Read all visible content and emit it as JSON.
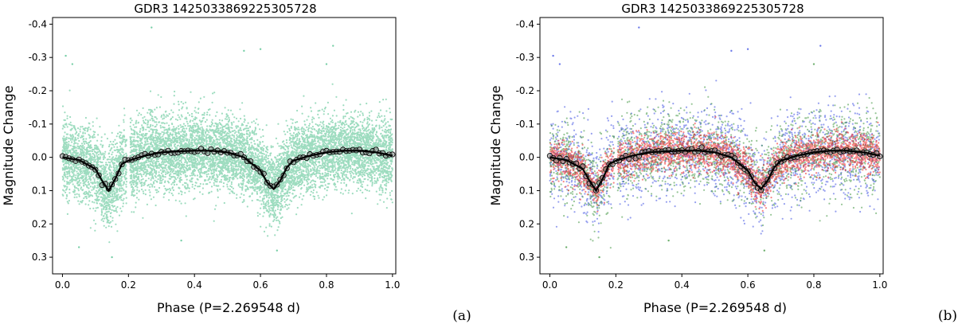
{
  "chart_data": [
    {
      "type": "scatter",
      "panel_label": "(a)",
      "title": "GDR3 1425033869225305728",
      "xlabel": "Phase (P=2.269548 d)",
      "ylabel": "Magnitude Change",
      "xlim": [
        -0.03,
        1.01
      ],
      "ylim": [
        0.35,
        -0.42
      ],
      "y_inverted": true,
      "xticks": [
        0.0,
        0.2,
        0.4,
        0.6,
        0.8,
        1.0
      ],
      "xtick_labels": [
        "0.0",
        "0.2",
        "0.4",
        "0.6",
        "0.8",
        "1.0"
      ],
      "yticks": [
        -0.4,
        -0.3,
        -0.2,
        -0.1,
        0.0,
        0.1,
        0.2,
        0.3
      ],
      "ytick_labels": [
        "-0.4",
        "-0.3",
        "-0.2",
        "-0.1",
        "0.0",
        "0.1",
        "0.2",
        "0.3"
      ],
      "series": [
        {
          "name": "photometry",
          "kind": "scatter",
          "color": "#3cb980",
          "n_points": 9000,
          "scatter_sigma": 0.055,
          "outliers": [
            [
              0.01,
              -0.305
            ],
            [
              0.03,
              -0.28
            ],
            [
              0.27,
              -0.39
            ],
            [
              0.55,
              -0.32
            ],
            [
              0.6,
              -0.325
            ],
            [
              0.8,
              -0.28
            ],
            [
              0.82,
              -0.335
            ],
            [
              0.05,
              0.27
            ],
            [
              0.15,
              0.3
            ],
            [
              0.36,
              0.25
            ],
            [
              0.65,
              0.28
            ]
          ]
        },
        {
          "name": "binned",
          "kind": "binned-circles",
          "color": "#000000",
          "face": "#7f7f7f",
          "step": 0.01
        },
        {
          "name": "model",
          "kind": "line",
          "color": "#000000",
          "x": [
            0.0,
            0.05,
            0.1,
            0.12,
            0.14,
            0.16,
            0.18,
            0.2,
            0.25,
            0.3,
            0.35,
            0.4,
            0.45,
            0.5,
            0.55,
            0.6,
            0.62,
            0.64,
            0.66,
            0.68,
            0.7,
            0.75,
            0.8,
            0.85,
            0.9,
            0.95,
            1.0
          ],
          "y": [
            0.0,
            0.008,
            0.035,
            0.07,
            0.1,
            0.065,
            0.02,
            0.01,
            -0.005,
            -0.015,
            -0.018,
            -0.02,
            -0.02,
            -0.015,
            0.0,
            0.04,
            0.075,
            0.095,
            0.07,
            0.03,
            0.01,
            -0.005,
            -0.015,
            -0.02,
            -0.02,
            -0.015,
            -0.005
          ]
        }
      ]
    },
    {
      "type": "scatter",
      "panel_label": "(b)",
      "title": "GDR3 1425033869225305728",
      "xlabel": "Phase (P=2.269548 d)",
      "ylabel": "Magnitude Change",
      "xlim": [
        -0.03,
        1.01
      ],
      "ylim": [
        0.35,
        -0.42
      ],
      "y_inverted": true,
      "xticks": [
        0.0,
        0.2,
        0.4,
        0.6,
        0.8,
        1.0
      ],
      "xtick_labels": [
        "0.0",
        "0.2",
        "0.4",
        "0.6",
        "0.8",
        "1.0"
      ],
      "yticks": [
        -0.4,
        -0.3,
        -0.2,
        -0.1,
        0.0,
        0.1,
        0.2,
        0.3
      ],
      "ytick_labels": [
        "-0.4",
        "-0.3",
        "-0.2",
        "-0.1",
        "0.0",
        "0.1",
        "0.2",
        "0.3"
      ],
      "series": [
        {
          "name": "blue band",
          "kind": "scatter",
          "color": "#2b3fe0",
          "n_points": 2200,
          "scatter_sigma": 0.065,
          "outliers": [
            [
              0.01,
              -0.305
            ],
            [
              0.03,
              -0.28
            ],
            [
              0.27,
              -0.39
            ],
            [
              0.55,
              -0.32
            ],
            [
              0.6,
              -0.325
            ],
            [
              0.82,
              -0.335
            ]
          ]
        },
        {
          "name": "green band",
          "kind": "scatter",
          "color": "#2e8b2e",
          "n_points": 2200,
          "scatter_sigma": 0.06,
          "outliers": [
            [
              0.8,
              -0.28
            ],
            [
              0.15,
              0.3
            ],
            [
              0.36,
              0.25
            ],
            [
              0.65,
              0.28
            ],
            [
              0.05,
              0.27
            ]
          ]
        },
        {
          "name": "red band",
          "kind": "scatter",
          "color": "#ee2020",
          "n_points": 3200,
          "scatter_sigma": 0.028,
          "outliers": []
        },
        {
          "name": "binned",
          "kind": "binned-circles",
          "color": "#000000",
          "face": "#7f7f7f",
          "step": 0.01
        },
        {
          "name": "model",
          "kind": "line",
          "color": "#000000",
          "x": [
            0.0,
            0.05,
            0.1,
            0.12,
            0.14,
            0.16,
            0.18,
            0.2,
            0.25,
            0.3,
            0.35,
            0.4,
            0.45,
            0.5,
            0.55,
            0.6,
            0.62,
            0.64,
            0.66,
            0.68,
            0.7,
            0.75,
            0.8,
            0.85,
            0.9,
            0.95,
            1.0
          ],
          "y": [
            0.0,
            0.008,
            0.035,
            0.07,
            0.1,
            0.065,
            0.02,
            0.01,
            -0.005,
            -0.015,
            -0.018,
            -0.02,
            -0.02,
            -0.015,
            0.0,
            0.04,
            0.075,
            0.095,
            0.07,
            0.03,
            0.01,
            -0.005,
            -0.015,
            -0.02,
            -0.02,
            -0.015,
            -0.005
          ]
        }
      ]
    }
  ]
}
